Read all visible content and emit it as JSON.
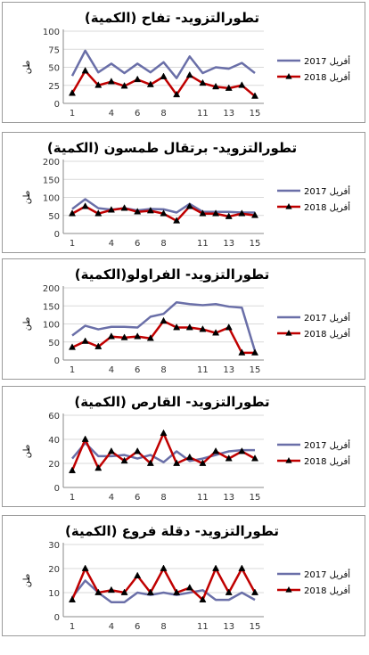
{
  "chart_data": [
    {
      "type": "line",
      "title": "تطورالتزويد- تفاح (الكمية)",
      "ylabel": "طن",
      "ylim": [
        0,
        100
      ],
      "yticks": [
        0,
        25,
        50,
        75,
        100
      ],
      "x": [
        1,
        2,
        3,
        4,
        5,
        6,
        7,
        8,
        9,
        10,
        11,
        12,
        13,
        14,
        15
      ],
      "xtick_labels": [
        1,
        4,
        6,
        8,
        11,
        13,
        15
      ],
      "series": [
        {
          "name": "أفريل 2017",
          "color": "#6a6fa8",
          "marker": "none",
          "values": [
            38,
            73,
            43,
            55,
            42,
            55,
            43,
            57,
            35,
            65,
            42,
            50,
            48,
            56,
            42
          ]
        },
        {
          "name": "أفريل 2018",
          "color": "#c00000",
          "marker": "triangle",
          "values": [
            14,
            45,
            25,
            30,
            24,
            33,
            26,
            37,
            12,
            39,
            28,
            23,
            21,
            25,
            10
          ]
        }
      ]
    },
    {
      "type": "line",
      "title": "تطورالتزويد- برتقال طمسون (الكمية)",
      "ylabel": "طن",
      "ylim": [
        0,
        200
      ],
      "yticks": [
        0,
        50,
        100,
        150,
        200
      ],
      "x": [
        1,
        2,
        3,
        4,
        5,
        6,
        7,
        8,
        9,
        10,
        11,
        12,
        13,
        14,
        15
      ],
      "xtick_labels": [
        1,
        4,
        6,
        8,
        11,
        13,
        15
      ],
      "series": [
        {
          "name": "أفريل 2017",
          "color": "#6a6fa8",
          "marker": "none",
          "values": [
            68,
            95,
            70,
            66,
            70,
            64,
            68,
            67,
            58,
            82,
            60,
            60,
            60,
            58,
            58
          ]
        },
        {
          "name": "أفريل 2018",
          "color": "#c00000",
          "marker": "triangle",
          "values": [
            55,
            75,
            55,
            65,
            70,
            60,
            63,
            55,
            35,
            75,
            55,
            55,
            47,
            55,
            50
          ]
        }
      ]
    },
    {
      "type": "line",
      "title": "تطورالتزويد- الفراولو(الكمية)",
      "ylabel": "طن",
      "ylim": [
        0,
        200
      ],
      "yticks": [
        0,
        50,
        100,
        150,
        200
      ],
      "x": [
        1,
        2,
        3,
        4,
        5,
        6,
        7,
        8,
        9,
        10,
        11,
        12,
        13,
        14,
        15
      ],
      "xtick_labels": [
        1,
        4,
        6,
        8,
        11,
        13,
        15
      ],
      "series": [
        {
          "name": "أفريل 2017",
          "color": "#6a6fa8",
          "marker": "none",
          "values": [
            68,
            95,
            85,
            92,
            92,
            90,
            120,
            128,
            160,
            155,
            152,
            155,
            148,
            145,
            25
          ]
        },
        {
          "name": "أفريل 2018",
          "color": "#c00000",
          "marker": "triangle",
          "values": [
            35,
            52,
            37,
            65,
            62,
            65,
            60,
            108,
            90,
            90,
            85,
            75,
            90,
            20,
            20
          ]
        }
      ]
    },
    {
      "type": "line",
      "title": "تطورالتزويد- القارص (الكمية)",
      "ylabel": "طن",
      "ylim": [
        0,
        60
      ],
      "yticks": [
        0,
        20,
        40,
        60
      ],
      "x": [
        1,
        2,
        3,
        4,
        5,
        6,
        7,
        8,
        9,
        10,
        11,
        12,
        13,
        14,
        15
      ],
      "xtick_labels": [
        1,
        4,
        6,
        8,
        11,
        13,
        15
      ],
      "series": [
        {
          "name": "أفريل 2017",
          "color": "#6a6fa8",
          "marker": "none",
          "values": [
            24,
            37,
            26,
            26,
            27,
            24,
            27,
            21,
            30,
            22,
            24,
            27,
            30,
            31,
            31
          ]
        },
        {
          "name": "أفريل 2018",
          "color": "#c00000",
          "marker": "triangle",
          "values": [
            14,
            40,
            16,
            30,
            22,
            30,
            20,
            45,
            20,
            25,
            20,
            30,
            24,
            30,
            24
          ]
        }
      ]
    },
    {
      "type": "line",
      "title": "تطورالتزويد- دقلة فروع (الكمية)",
      "ylabel": "طن",
      "ylim": [
        0,
        30
      ],
      "yticks": [
        0,
        10,
        20,
        30
      ],
      "x": [
        1,
        2,
        3,
        4,
        5,
        6,
        7,
        8,
        9,
        10,
        11,
        12,
        13,
        14,
        15
      ],
      "xtick_labels": [
        1,
        4,
        6,
        8,
        11,
        13,
        15
      ],
      "series": [
        {
          "name": "أفريل 2017",
          "color": "#6a6fa8",
          "marker": "none",
          "values": [
            8,
            15,
            10,
            6,
            6,
            10,
            9,
            10,
            9,
            10,
            11,
            7,
            7,
            10,
            7
          ]
        },
        {
          "name": "أفريل 2018",
          "color": "#c00000",
          "marker": "triangle",
          "values": [
            7,
            20,
            10,
            11,
            10,
            17,
            10,
            20,
            10,
            12,
            7,
            20,
            10,
            20,
            10
          ]
        }
      ]
    }
  ]
}
